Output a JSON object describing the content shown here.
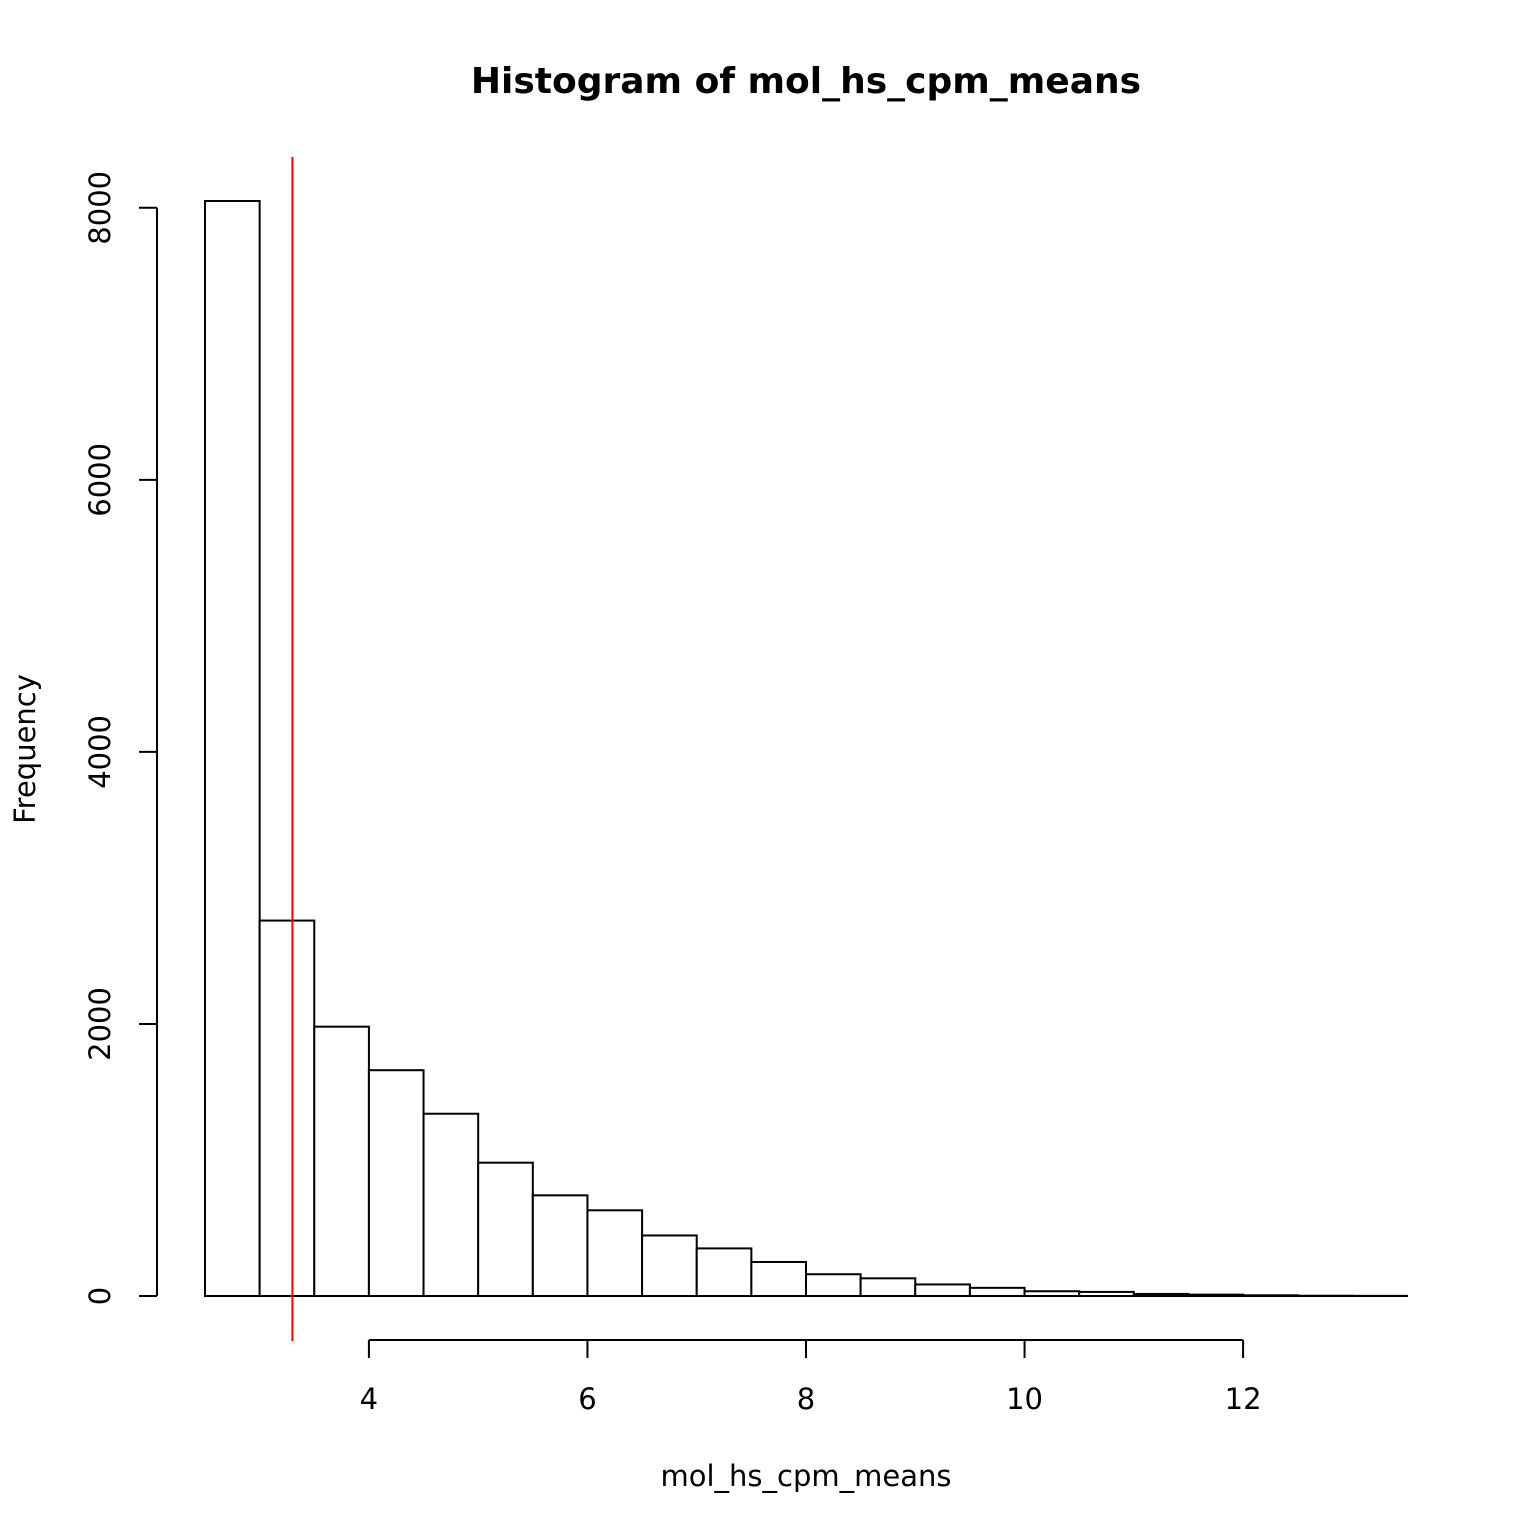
{
  "chart_data": {
    "type": "bar",
    "title": "Histogram of mol_hs_cpm_means",
    "xlabel": "mol_hs_cpm_means",
    "ylabel": "Frequency",
    "bins": [
      {
        "start": 2.5,
        "end": 3.0,
        "count": 8050
      },
      {
        "start": 3.0,
        "end": 3.5,
        "count": 2760
      },
      {
        "start": 3.5,
        "end": 4.0,
        "count": 1980
      },
      {
        "start": 4.0,
        "end": 4.5,
        "count": 1660
      },
      {
        "start": 4.5,
        "end": 5.0,
        "count": 1340
      },
      {
        "start": 5.0,
        "end": 5.5,
        "count": 980
      },
      {
        "start": 5.5,
        "end": 6.0,
        "count": 740
      },
      {
        "start": 6.0,
        "end": 6.5,
        "count": 630
      },
      {
        "start": 6.5,
        "end": 7.0,
        "count": 445
      },
      {
        "start": 7.0,
        "end": 7.5,
        "count": 350
      },
      {
        "start": 7.5,
        "end": 8.0,
        "count": 250
      },
      {
        "start": 8.0,
        "end": 8.5,
        "count": 160
      },
      {
        "start": 8.5,
        "end": 9.0,
        "count": 130
      },
      {
        "start": 9.0,
        "end": 9.5,
        "count": 85
      },
      {
        "start": 9.5,
        "end": 10.0,
        "count": 60
      },
      {
        "start": 10.0,
        "end": 10.5,
        "count": 35
      },
      {
        "start": 10.5,
        "end": 11.0,
        "count": 30
      },
      {
        "start": 11.0,
        "end": 11.5,
        "count": 15
      },
      {
        "start": 11.5,
        "end": 12.0,
        "count": 10
      },
      {
        "start": 12.0,
        "end": 12.5,
        "count": 5
      },
      {
        "start": 12.5,
        "end": 13.0,
        "count": 2
      },
      {
        "start": 13.0,
        "end": 13.5,
        "count": 1
      }
    ],
    "x_ticks": [
      4,
      6,
      8,
      10,
      12
    ],
    "y_ticks": [
      0,
      2000,
      4000,
      6000,
      8000
    ],
    "xlim": [
      2.5,
      13.5
    ],
    "ylim": [
      0,
      8050
    ],
    "vline": {
      "x": 3.3,
      "color": "#ff0000"
    },
    "bar_fill": "#ffffff",
    "bar_stroke": "#000000",
    "grid": false,
    "legend": "none"
  }
}
